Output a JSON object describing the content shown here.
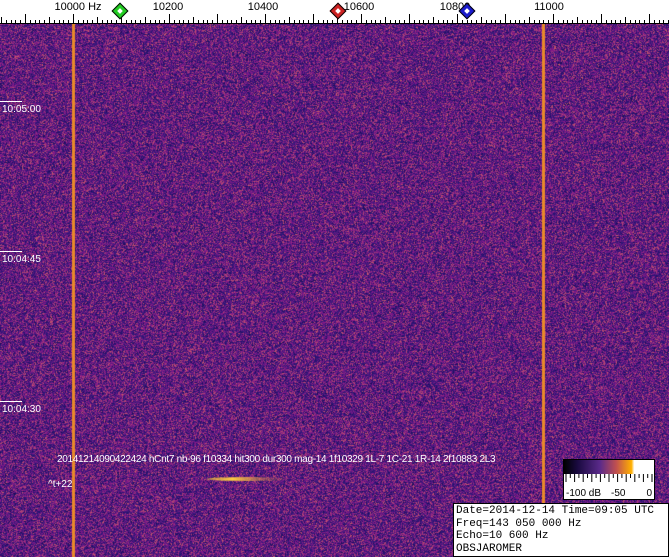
{
  "ruler": {
    "unit": "Hz",
    "labels": [
      "10000 Hz",
      "10200",
      "10400",
      "10600",
      "10800",
      "11000"
    ],
    "label_hz": [
      10000,
      10200,
      10400,
      10600,
      10800,
      11000
    ],
    "markers": [
      {
        "name": "green-marker",
        "color": "#22cc22",
        "hz": 10095
      },
      {
        "name": "red-marker",
        "color": "#cc2222",
        "hz": 10550
      },
      {
        "name": "blue-marker",
        "color": "#1a1acc",
        "hz": 10820
      }
    ]
  },
  "spectrogram": {
    "vertical_lines_hz": [
      10000,
      10980
    ],
    "time_labels": [
      "10:05:00",
      "10:04:45",
      "10:04:30"
    ],
    "annotation": "20141214090422424 hCnt7 nb-96 f10334 hit300 dur300 mag-14 1f10329 1L-7 1C-21 1R-14 2f10883 2L3",
    "delta_t": "^t+22"
  },
  "colorbar": {
    "labels": [
      "-100 dB",
      "-50",
      "0"
    ]
  },
  "info": {
    "line1": "Date=2014-12-14 Time=09:05 UTC",
    "line2": "Freq=143 050 000 Hz",
    "line3": "Echo=10 600 Hz",
    "line4": "OBSJAROMER"
  }
}
